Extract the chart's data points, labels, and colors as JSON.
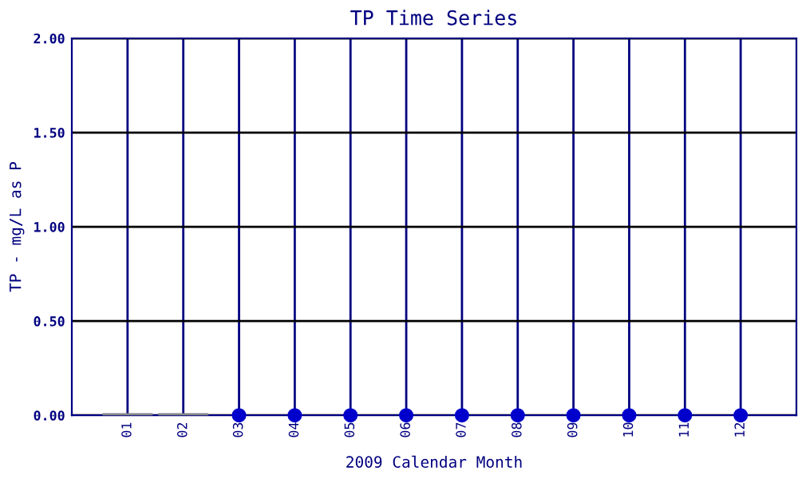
{
  "chart_data": {
    "type": "scatter",
    "title": "TP Time Series",
    "xlabel": "2009 Calendar Month",
    "ylabel": "TP - mg/L as P",
    "categories": [
      "01",
      "02",
      "03",
      "04",
      "05",
      "06",
      "07",
      "08",
      "09",
      "10",
      "11",
      "12"
    ],
    "series": [
      {
        "type": "bar",
        "color": "#888888",
        "values": [
          0,
          0,
          null,
          null,
          null,
          null,
          null,
          null,
          null,
          null,
          null,
          null
        ]
      },
      {
        "color": "#0000cc",
        "values": [
          null,
          null,
          0,
          0,
          0,
          0,
          0,
          0,
          0,
          0,
          0,
          0
        ]
      }
    ],
    "ylim": [
      0,
      2
    ],
    "yticks": [
      {
        "value": 0,
        "label": "0.00"
      },
      {
        "value": 0.5,
        "label": "0.50"
      },
      {
        "value": 1,
        "label": "1.00"
      },
      {
        "value": 1.5,
        "label": "1.50"
      },
      {
        "value": 2,
        "label": "2.00"
      }
    ],
    "grid": true,
    "marker": "circle"
  }
}
